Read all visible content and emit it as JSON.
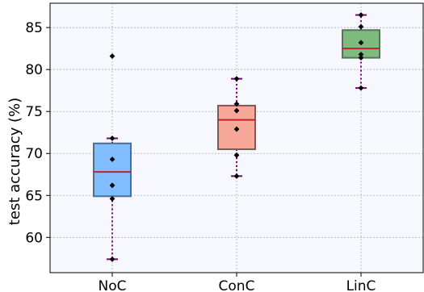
{
  "chart_data": {
    "type": "box",
    "title": "",
    "xlabel": "",
    "ylabel": "test accuracy (%)",
    "categories": [
      "NoC",
      "ConC",
      "LinC"
    ],
    "ylim": [
      55.8,
      87.9
    ],
    "yticks": [
      60,
      65,
      70,
      75,
      80,
      85
    ],
    "grid": true,
    "boxes": [
      {
        "category": "NoC",
        "whisker_low": 57.4,
        "q1": 64.9,
        "median": 67.8,
        "q3": 71.2,
        "whisker_high": 71.8,
        "points": [
          81.6,
          71.8,
          69.3,
          66.2,
          64.6,
          57.4
        ],
        "color": "#82bdff",
        "edge": "#4a6f8f"
      },
      {
        "category": "ConC",
        "whisker_low": 67.3,
        "q1": 70.5,
        "median": 74.0,
        "q3": 75.7,
        "whisker_high": 78.9,
        "points": [
          78.9,
          75.9,
          75.1,
          72.9,
          69.8,
          67.3
        ],
        "color": "#f7a898",
        "edge": "#7d5a55"
      },
      {
        "category": "LinC",
        "whisker_low": 77.8,
        "q1": 81.4,
        "median": 82.5,
        "q3": 84.7,
        "whisker_high": 86.5,
        "points": [
          86.5,
          85.1,
          83.2,
          81.8,
          81.4,
          77.8
        ],
        "color": "#7fba7f",
        "edge": "#55735a"
      }
    ],
    "colors": {
      "median": "#c0232e",
      "whisker": "#800080",
      "point": "#000000",
      "plot_background": "#f7f8fe",
      "grid": "#b0b0b0"
    }
  }
}
